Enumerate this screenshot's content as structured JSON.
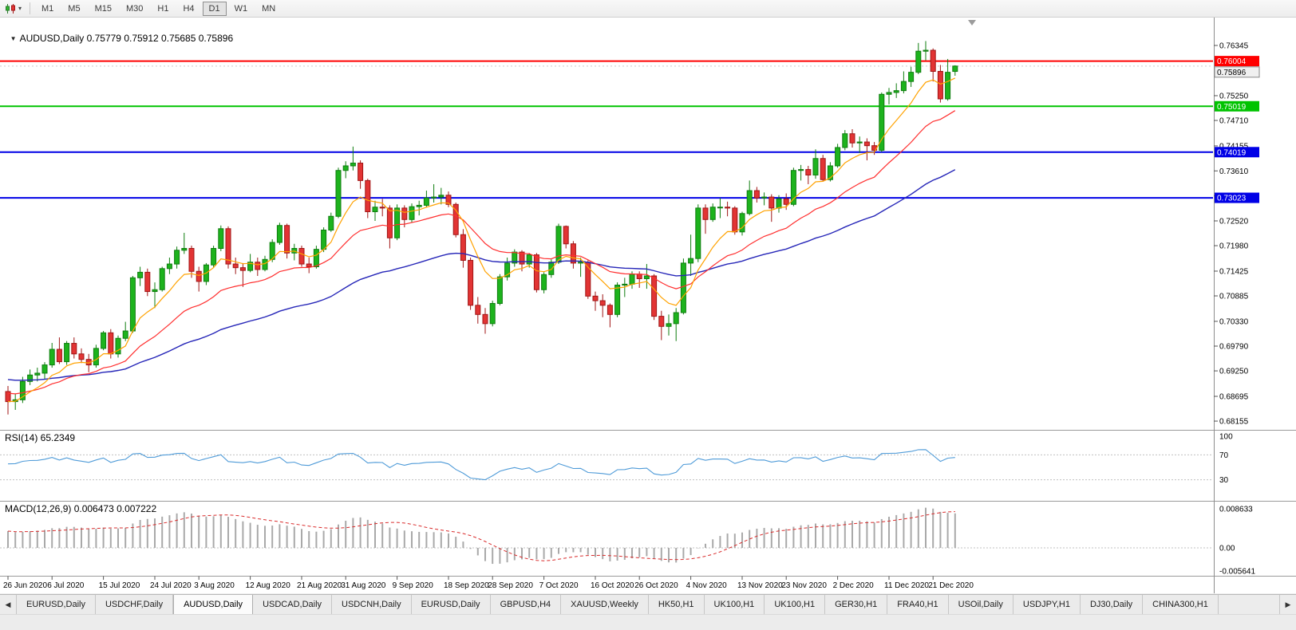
{
  "icons": {
    "dropdown": "▾",
    "collapse": "▼",
    "tab_scroll_left": "◀",
    "tab_scroll_right": "▶"
  },
  "toolbar": {
    "timeframes": [
      "M1",
      "M5",
      "M15",
      "M30",
      "H1",
      "H4",
      "D1",
      "W1",
      "MN"
    ],
    "active_timeframe": "D1"
  },
  "chart": {
    "title": "AUDUSD,Daily 0.75779 0.75912 0.75685 0.75896",
    "symbol": "AUDUSD",
    "period": "Daily",
    "ohlc": {
      "open": "0.75779",
      "high": "0.75912",
      "low": "0.75685",
      "close": "0.75896"
    }
  },
  "indicators": {
    "rsi_label": "RSI(14) 65.2349",
    "macd_label": "MACD(12,26,9) 0.006473 0.007222"
  },
  "chart_data": {
    "type": "candlestick",
    "symbol": "AUDUSD",
    "timeframe": "Daily",
    "price_ticks": [
      "0.76345",
      "0.75250",
      "0.74710",
      "0.74155",
      "0.73610",
      "0.73065",
      "0.72520",
      "0.71980",
      "0.71425",
      "0.70885",
      "0.70330",
      "0.69790",
      "0.69250",
      "0.68695",
      "0.68155"
    ],
    "rsi_ticks": [
      "100",
      "70",
      "30"
    ],
    "macd_ticks": [
      "0.008633",
      "0.00",
      "-0.005641"
    ],
    "x_labels": [
      "26 Jun 2020",
      "6 Jul 2020",
      "15 Jul 2020",
      "24 Jul 2020",
      "3 Aug 2020",
      "12 Aug 2020",
      "21 Aug 2020",
      "31 Aug 2020",
      "9 Sep 2020",
      "18 Sep 2020",
      "28 Sep 2020",
      "7 Oct 2020",
      "16 Oct 2020",
      "26 Oct 2020",
      "4 Nov 2020",
      "13 Nov 2020",
      "23 Nov 2020",
      "2 Dec 2020",
      "11 Dec 2020",
      "21 Dec 2020"
    ],
    "x_label_indices": [
      0,
      6,
      13,
      20,
      26,
      33,
      40,
      46,
      53,
      60,
      66,
      73,
      80,
      86,
      93,
      100,
      106,
      113,
      120,
      126
    ],
    "levels": [
      {
        "price": 0.76004,
        "label": "0.76004",
        "color": "#ff0000"
      },
      {
        "price": 0.75019,
        "label": "0.75019",
        "color": "#00c300"
      },
      {
        "price": 0.74019,
        "label": "0.74019",
        "color": "#0000e6"
      },
      {
        "price": 0.73023,
        "label": "0.73023",
        "color": "#0000e6"
      }
    ],
    "bid": {
      "price": 0.75896,
      "label": "0.75896"
    },
    "colors": {
      "up": "#1db31d",
      "up_stroke": "#0f7d0f",
      "down": "#e23434",
      "down_stroke": "#a01616",
      "ma_fast": "#ffa200",
      "ma_mid": "#ff2e2e",
      "ma_slow": "#2626b8",
      "rsi": "#4f9bd8",
      "macd_hist": "#a9a9a9",
      "macd_signal": "#d92b2b"
    },
    "candles": [
      [
        0.688,
        0.6892,
        0.683,
        0.6858
      ],
      [
        0.6858,
        0.6875,
        0.684,
        0.6862
      ],
      [
        0.6862,
        0.6912,
        0.6855,
        0.6902
      ],
      [
        0.6902,
        0.6928,
        0.6894,
        0.6916
      ],
      [
        0.6916,
        0.6932,
        0.6902,
        0.692
      ],
      [
        0.692,
        0.6944,
        0.6906,
        0.6938
      ],
      [
        0.6938,
        0.6986,
        0.6932,
        0.6972
      ],
      [
        0.6972,
        0.6998,
        0.694,
        0.6945
      ],
      [
        0.6945,
        0.699,
        0.6938,
        0.6985
      ],
      [
        0.6985,
        0.6998,
        0.6952,
        0.6962
      ],
      [
        0.6962,
        0.6974,
        0.6942,
        0.695
      ],
      [
        0.695,
        0.6962,
        0.6922,
        0.6938
      ],
      [
        0.6938,
        0.6982,
        0.6932,
        0.6974
      ],
      [
        0.6974,
        0.7012,
        0.697,
        0.7008
      ],
      [
        0.7008,
        0.7016,
        0.6952,
        0.6962
      ],
      [
        0.6962,
        0.7002,
        0.6954,
        0.6996
      ],
      [
        0.6996,
        0.7032,
        0.699,
        0.7012
      ],
      [
        0.7012,
        0.7132,
        0.7008,
        0.7128
      ],
      [
        0.7128,
        0.7152,
        0.711,
        0.714
      ],
      [
        0.714,
        0.7148,
        0.7088,
        0.7098
      ],
      [
        0.7098,
        0.7118,
        0.7062,
        0.7102
      ],
      [
        0.7102,
        0.7152,
        0.7098,
        0.7148
      ],
      [
        0.7148,
        0.7172,
        0.7136,
        0.7158
      ],
      [
        0.7158,
        0.7196,
        0.7148,
        0.7188
      ],
      [
        0.7188,
        0.7226,
        0.718,
        0.7192
      ],
      [
        0.7192,
        0.7198,
        0.7128,
        0.7142
      ],
      [
        0.7142,
        0.7152,
        0.7098,
        0.712
      ],
      [
        0.712,
        0.716,
        0.7112,
        0.7156
      ],
      [
        0.7156,
        0.7198,
        0.715,
        0.7192
      ],
      [
        0.7192,
        0.7242,
        0.7186,
        0.7235
      ],
      [
        0.7235,
        0.724,
        0.7148,
        0.7158
      ],
      [
        0.7158,
        0.7172,
        0.7136,
        0.715
      ],
      [
        0.715,
        0.716,
        0.7108,
        0.7144
      ],
      [
        0.7144,
        0.718,
        0.714,
        0.7162
      ],
      [
        0.7162,
        0.7172,
        0.7132,
        0.7146
      ],
      [
        0.7146,
        0.7176,
        0.7142,
        0.7168
      ],
      [
        0.7168,
        0.7212,
        0.7162,
        0.7205
      ],
      [
        0.7205,
        0.7248,
        0.72,
        0.7242
      ],
      [
        0.7242,
        0.7246,
        0.717,
        0.7182
      ],
      [
        0.7182,
        0.7202,
        0.7166,
        0.7192
      ],
      [
        0.7192,
        0.7198,
        0.7152,
        0.7158
      ],
      [
        0.7158,
        0.7172,
        0.7138,
        0.7152
      ],
      [
        0.7152,
        0.7198,
        0.7148,
        0.719
      ],
      [
        0.719,
        0.7238,
        0.7184,
        0.7232
      ],
      [
        0.7232,
        0.727,
        0.7228,
        0.7262
      ],
      [
        0.7262,
        0.7368,
        0.7258,
        0.7362
      ],
      [
        0.7362,
        0.7382,
        0.7345,
        0.7372
      ],
      [
        0.7372,
        0.7414,
        0.7362,
        0.7378
      ],
      [
        0.7378,
        0.7384,
        0.7322,
        0.734
      ],
      [
        0.734,
        0.7344,
        0.7258,
        0.7272
      ],
      [
        0.7272,
        0.7296,
        0.7252,
        0.7282
      ],
      [
        0.7282,
        0.73,
        0.7262,
        0.728
      ],
      [
        0.728,
        0.7286,
        0.7192,
        0.7215
      ],
      [
        0.7215,
        0.7288,
        0.721,
        0.728
      ],
      [
        0.728,
        0.7286,
        0.7238,
        0.7255
      ],
      [
        0.7255,
        0.729,
        0.7248,
        0.7283
      ],
      [
        0.7283,
        0.7296,
        0.7264,
        0.7286
      ],
      [
        0.7286,
        0.7318,
        0.7282,
        0.7302
      ],
      [
        0.7302,
        0.7332,
        0.7292,
        0.7304
      ],
      [
        0.7304,
        0.7324,
        0.7288,
        0.7308
      ],
      [
        0.7308,
        0.7316,
        0.7282,
        0.7288
      ],
      [
        0.7288,
        0.7292,
        0.7216,
        0.7222
      ],
      [
        0.7222,
        0.7234,
        0.715,
        0.7166
      ],
      [
        0.7166,
        0.7172,
        0.7058,
        0.7068
      ],
      [
        0.7068,
        0.7086,
        0.7028,
        0.7048
      ],
      [
        0.7048,
        0.7062,
        0.7006,
        0.7028
      ],
      [
        0.7028,
        0.7078,
        0.7022,
        0.7072
      ],
      [
        0.7072,
        0.7136,
        0.7068,
        0.713
      ],
      [
        0.713,
        0.7172,
        0.7122,
        0.716
      ],
      [
        0.716,
        0.719,
        0.7152,
        0.7184
      ],
      [
        0.7184,
        0.7188,
        0.7142,
        0.7158
      ],
      [
        0.7158,
        0.7182,
        0.715,
        0.7178
      ],
      [
        0.7178,
        0.7182,
        0.7096,
        0.7102
      ],
      [
        0.7102,
        0.714,
        0.7094,
        0.7135
      ],
      [
        0.7135,
        0.7168,
        0.7128,
        0.7162
      ],
      [
        0.7162,
        0.7246,
        0.7158,
        0.724
      ],
      [
        0.724,
        0.7242,
        0.7192,
        0.7202
      ],
      [
        0.7202,
        0.7208,
        0.7148,
        0.716
      ],
      [
        0.716,
        0.7172,
        0.713,
        0.7162
      ],
      [
        0.7162,
        0.7166,
        0.7082,
        0.7088
      ],
      [
        0.7088,
        0.7098,
        0.7056,
        0.7078
      ],
      [
        0.7078,
        0.7092,
        0.7042,
        0.7068
      ],
      [
        0.7068,
        0.7072,
        0.702,
        0.7048
      ],
      [
        0.7048,
        0.7118,
        0.7042,
        0.7112
      ],
      [
        0.7112,
        0.7128,
        0.7086,
        0.7114
      ],
      [
        0.7114,
        0.7142,
        0.7104,
        0.7136
      ],
      [
        0.7136,
        0.7142,
        0.7106,
        0.7126
      ],
      [
        0.7126,
        0.7158,
        0.7104,
        0.7132
      ],
      [
        0.7132,
        0.7136,
        0.7036,
        0.7044
      ],
      [
        0.7044,
        0.7056,
        0.6992,
        0.7022
      ],
      [
        0.7022,
        0.7048,
        0.7002,
        0.7028
      ],
      [
        0.7028,
        0.7062,
        0.699,
        0.7052
      ],
      [
        0.7052,
        0.717,
        0.7048,
        0.716
      ],
      [
        0.716,
        0.7222,
        0.7132,
        0.717
      ],
      [
        0.717,
        0.7288,
        0.7162,
        0.728
      ],
      [
        0.728,
        0.7288,
        0.7224,
        0.7255
      ],
      [
        0.7255,
        0.729,
        0.725,
        0.7282
      ],
      [
        0.7282,
        0.7302,
        0.7258,
        0.7282
      ],
      [
        0.7282,
        0.7294,
        0.7262,
        0.728
      ],
      [
        0.728,
        0.7284,
        0.7222,
        0.7228
      ],
      [
        0.7228,
        0.7272,
        0.722,
        0.7268
      ],
      [
        0.7268,
        0.734,
        0.7264,
        0.7318
      ],
      [
        0.7318,
        0.7326,
        0.7292,
        0.7302
      ],
      [
        0.7302,
        0.7314,
        0.7286,
        0.7304
      ],
      [
        0.7304,
        0.731,
        0.725,
        0.728
      ],
      [
        0.728,
        0.7308,
        0.727,
        0.73
      ],
      [
        0.73,
        0.7312,
        0.7276,
        0.7288
      ],
      [
        0.7288,
        0.7368,
        0.7284,
        0.7362
      ],
      [
        0.7362,
        0.7374,
        0.734,
        0.7364
      ],
      [
        0.7364,
        0.7372,
        0.7332,
        0.7352
      ],
      [
        0.7352,
        0.7408,
        0.7344,
        0.7388
      ],
      [
        0.7388,
        0.7396,
        0.7338,
        0.7342
      ],
      [
        0.7342,
        0.738,
        0.7338,
        0.7372
      ],
      [
        0.7372,
        0.742,
        0.7368,
        0.7412
      ],
      [
        0.7412,
        0.745,
        0.7406,
        0.7442
      ],
      [
        0.7442,
        0.7452,
        0.7412,
        0.7422
      ],
      [
        0.7422,
        0.7436,
        0.74,
        0.7424
      ],
      [
        0.7424,
        0.7432,
        0.7384,
        0.7416
      ],
      [
        0.7416,
        0.7424,
        0.7396,
        0.7406
      ],
      [
        0.7406,
        0.7532,
        0.7402,
        0.7528
      ],
      [
        0.7528,
        0.7542,
        0.7506,
        0.7532
      ],
      [
        0.7532,
        0.7552,
        0.752,
        0.7536
      ],
      [
        0.7536,
        0.7578,
        0.753,
        0.7556
      ],
      [
        0.7556,
        0.7588,
        0.7544,
        0.7576
      ],
      [
        0.7576,
        0.764,
        0.7572,
        0.7622
      ],
      [
        0.7622,
        0.7644,
        0.7602,
        0.7624
      ],
      [
        0.7624,
        0.7628,
        0.7556,
        0.7578
      ],
      [
        0.7578,
        0.7592,
        0.751,
        0.7518
      ],
      [
        0.7518,
        0.7605,
        0.7514,
        0.7576
      ],
      [
        0.75779,
        0.75912,
        0.75685,
        0.75896
      ]
    ]
  },
  "tabs": {
    "items": [
      {
        "label": "EURUSD,Daily",
        "active": false
      },
      {
        "label": "USDCHF,Daily",
        "active": false
      },
      {
        "label": "AUDUSD,Daily",
        "active": true
      },
      {
        "label": "USDCAD,Daily",
        "active": false
      },
      {
        "label": "USDCNH,Daily",
        "active": false
      },
      {
        "label": "EURUSD,Daily",
        "active": false
      },
      {
        "label": "GBPUSD,H4",
        "active": false
      },
      {
        "label": "XAUUSD,Weekly",
        "active": false
      },
      {
        "label": "HK50,H1",
        "active": false
      },
      {
        "label": "UK100,H1",
        "active": false
      },
      {
        "label": "UK100,H1",
        "active": false
      },
      {
        "label": "GER30,H1",
        "active": false
      },
      {
        "label": "FRA40,H1",
        "active": false
      },
      {
        "label": "USOil,Daily",
        "active": false
      },
      {
        "label": "USDJPY,H1",
        "active": false
      },
      {
        "label": "DJ30,Daily",
        "active": false
      },
      {
        "label": "CHINA300,H1",
        "active": false
      }
    ]
  }
}
